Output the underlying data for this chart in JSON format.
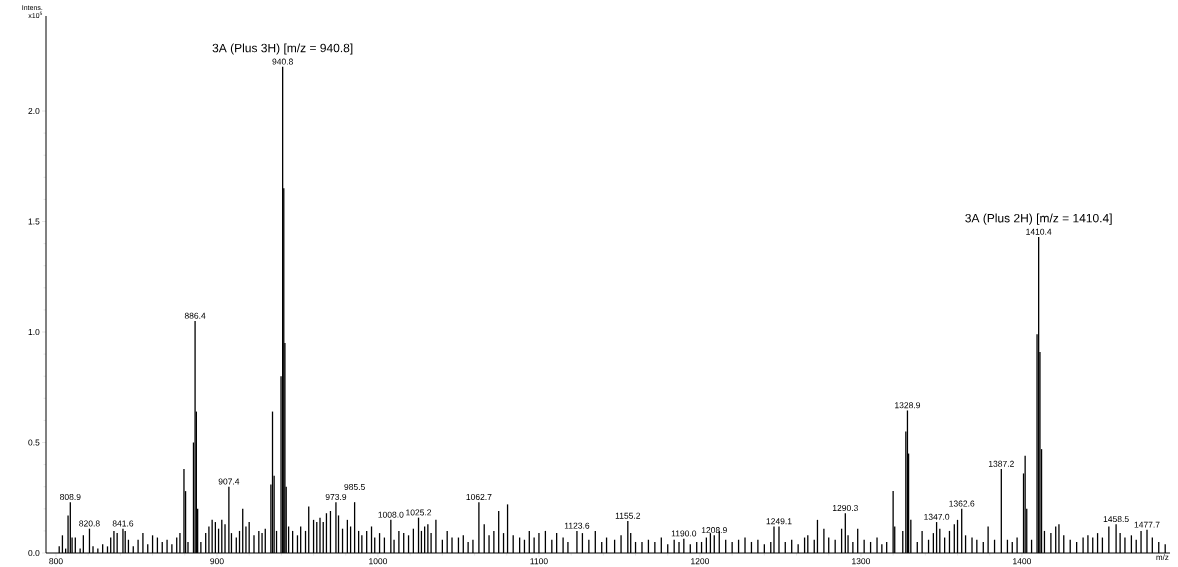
{
  "chart_data": {
    "type": "bar",
    "xlabel": "m/z",
    "ylabel": "Intens. x10$^{5}$",
    "xlim": [
      793.8,
      1492
    ],
    "ylim": [
      0,
      2.43
    ],
    "xticks": [
      800,
      900,
      1000,
      1100,
      1200,
      1300,
      1400
    ],
    "yticks": [
      {
        "value": 0,
        "label": "0.0"
      },
      {
        "value": 0.5,
        "label": "0.5"
      },
      {
        "value": 1,
        "label": "1.0"
      },
      {
        "value": 1.5,
        "label": "1.5"
      },
      {
        "value": 2,
        "label": "2.0"
      }
    ],
    "series": [
      {
        "color": "#000000",
        "x": [
          802,
          804,
          806,
          807.5,
          808.9,
          810,
          812,
          815,
          817,
          820.8,
          823,
          826,
          829,
          832,
          834,
          836,
          838,
          841.6,
          843,
          845,
          848,
          851,
          854,
          857,
          860,
          863,
          866,
          869,
          872,
          875,
          877,
          879.5,
          880.5,
          882,
          885.4,
          886.4,
          887.2,
          888,
          890,
          893,
          895,
          897,
          899,
          901,
          903,
          905,
          907.4,
          909,
          912,
          914,
          916,
          918,
          920,
          923,
          926,
          928,
          930,
          933.5,
          934.5,
          935.5,
          937,
          939.8,
          940.8,
          941.5,
          942.2,
          943,
          944.5,
          947,
          950,
          952,
          955,
          957,
          960,
          962,
          964,
          966,
          968,
          970.5,
          973.9,
          975.5,
          978,
          981,
          983,
          985.5,
          988,
          990,
          993,
          996,
          998,
          1001,
          1004,
          1008.0,
          1010,
          1013,
          1016,
          1019,
          1022,
          1025.2,
          1027,
          1029,
          1031,
          1033,
          1036,
          1040,
          1043,
          1046,
          1050,
          1053,
          1056,
          1059,
          1062.7,
          1066,
          1069,
          1072,
          1075,
          1078,
          1080.5,
          1084,
          1088,
          1091,
          1094,
          1097,
          1100,
          1104,
          1108,
          1111,
          1115,
          1118,
          1123.6,
          1127,
          1131,
          1135,
          1139,
          1142,
          1147,
          1151,
          1155.2,
          1157,
          1160,
          1164,
          1168,
          1172,
          1176,
          1180,
          1184,
          1187,
          1190.0,
          1194,
          1198,
          1201,
          1204,
          1206.5,
          1208.9,
          1212,
          1216,
          1220,
          1224,
          1228,
          1232,
          1236,
          1240,
          1244,
          1246,
          1249.1,
          1253,
          1257,
          1261,
          1265,
          1267,
          1271,
          1273,
          1277,
          1280,
          1284,
          1288,
          1290.3,
          1292,
          1295,
          1298,
          1302,
          1306,
          1310,
          1313,
          1316,
          1320,
          1321,
          1326,
          1327.9,
          1328.9,
          1329.6,
          1331,
          1335,
          1338,
          1342,
          1345,
          1347.0,
          1349,
          1352,
          1355,
          1358,
          1360,
          1362.6,
          1365,
          1369,
          1372,
          1376,
          1379,
          1383,
          1387.2,
          1391,
          1394,
          1397,
          1401,
          1402,
          1403,
          1406,
          1409.4,
          1410.4,
          1411.2,
          1412.2,
          1414,
          1418,
          1421,
          1423,
          1426,
          1430,
          1434,
          1438,
          1441,
          1444,
          1447,
          1450,
          1454,
          1458.5,
          1461,
          1464,
          1468,
          1471,
          1474,
          1477.7,
          1481,
          1485,
          1489
        ],
        "values": [
          0.03,
          0.08,
          0.02,
          0.17,
          0.23,
          0.07,
          0.07,
          0.02,
          0.08,
          0.11,
          0.03,
          0.02,
          0.04,
          0.03,
          0.07,
          0.1,
          0.09,
          0.11,
          0.1,
          0.06,
          0.03,
          0.06,
          0.09,
          0.04,
          0.08,
          0.07,
          0.05,
          0.06,
          0.04,
          0.07,
          0.09,
          0.38,
          0.28,
          0.05,
          0.5,
          1.05,
          0.64,
          0.2,
          0.05,
          0.09,
          0.12,
          0.15,
          0.14,
          0.11,
          0.15,
          0.13,
          0.3,
          0.09,
          0.07,
          0.1,
          0.2,
          0.12,
          0.14,
          0.08,
          0.1,
          0.09,
          0.11,
          0.31,
          0.64,
          0.35,
          0.1,
          0.8,
          2.2,
          1.65,
          0.95,
          0.3,
          0.12,
          0.1,
          0.08,
          0.12,
          0.1,
          0.21,
          0.15,
          0.14,
          0.16,
          0.14,
          0.18,
          0.19,
          0.23,
          0.17,
          0.11,
          0.15,
          0.12,
          0.23,
          0.1,
          0.08,
          0.1,
          0.12,
          0.07,
          0.09,
          0.07,
          0.15,
          0.06,
          0.1,
          0.09,
          0.08,
          0.11,
          0.16,
          0.1,
          0.12,
          0.13,
          0.09,
          0.15,
          0.06,
          0.1,
          0.07,
          0.07,
          0.08,
          0.05,
          0.06,
          0.23,
          0.13,
          0.08,
          0.1,
          0.19,
          0.09,
          0.22,
          0.08,
          0.07,
          0.06,
          0.1,
          0.07,
          0.09,
          0.1,
          0.06,
          0.09,
          0.07,
          0.05,
          0.1,
          0.09,
          0.06,
          0.1,
          0.05,
          0.07,
          0.06,
          0.08,
          0.145,
          0.09,
          0.05,
          0.05,
          0.06,
          0.05,
          0.07,
          0.04,
          0.06,
          0.05,
          0.065,
          0.04,
          0.05,
          0.05,
          0.07,
          0.09,
          0.08,
          0.1,
          0.06,
          0.05,
          0.06,
          0.07,
          0.05,
          0.06,
          0.04,
          0.05,
          0.12,
          0.12,
          0.05,
          0.06,
          0.04,
          0.07,
          0.08,
          0.06,
          0.15,
          0.11,
          0.07,
          0.06,
          0.11,
          0.18,
          0.08,
          0.05,
          0.11,
          0.06,
          0.05,
          0.07,
          0.04,
          0.05,
          0.28,
          0.12,
          0.1,
          0.55,
          0.645,
          0.45,
          0.15,
          0.05,
          0.1,
          0.06,
          0.09,
          0.14,
          0.11,
          0.07,
          0.1,
          0.13,
          0.15,
          0.2,
          0.08,
          0.07,
          0.06,
          0.05,
          0.12,
          0.06,
          0.38,
          0.06,
          0.05,
          0.07,
          0.36,
          0.44,
          0.2,
          0.06,
          0.99,
          1.43,
          0.91,
          0.47,
          0.1,
          0.09,
          0.12,
          0.13,
          0.08,
          0.06,
          0.05,
          0.07,
          0.08,
          0.07,
          0.09,
          0.07,
          0.12,
          0.13,
          0.09,
          0.07,
          0.08,
          0.06,
          0.1,
          0.105,
          0.07,
          0.05,
          0.04
        ]
      }
    ],
    "annotations": [
      {
        "text": "808.9",
        "x": 808.9,
        "y": 0.23
      },
      {
        "text": "820.8",
        "x": 820.8,
        "y": 0.11
      },
      {
        "text": "841.6",
        "x": 841.6,
        "y": 0.11
      },
      {
        "text": "886.4",
        "x": 886.4,
        "y": 1.05
      },
      {
        "text": "907.4",
        "x": 907.4,
        "y": 0.3
      },
      {
        "text": "940.8",
        "x": 940.8,
        "y": 2.2
      },
      {
        "text": "3A (Plus 3H) [m/z = 940.8]",
        "x": 940.8,
        "y": 2.2
      },
      {
        "text": "973.9",
        "x": 973.9,
        "y": 0.23
      },
      {
        "text": "985.5",
        "x": 985.5,
        "y": 0.23
      },
      {
        "text": "1008.0",
        "x": 1008.0,
        "y": 0.15
      },
      {
        "text": "1025.2",
        "x": 1025.2,
        "y": 0.16
      },
      {
        "text": "1062.7",
        "x": 1062.7,
        "y": 0.23
      },
      {
        "text": "1123.6",
        "x": 1123.6,
        "y": 0.1
      },
      {
        "text": "1155.2",
        "x": 1155.2,
        "y": 0.145
      },
      {
        "text": "1190.0",
        "x": 1190.0,
        "y": 0.065
      },
      {
        "text": "1208.9",
        "x": 1208.9,
        "y": 0.08
      },
      {
        "text": "1249.1",
        "x": 1249.1,
        "y": 0.12
      },
      {
        "text": "1290.3",
        "x": 1290.3,
        "y": 0.18
      },
      {
        "text": "1328.9",
        "x": 1328.9,
        "y": 0.645
      },
      {
        "text": "1347.0",
        "x": 1347.0,
        "y": 0.14
      },
      {
        "text": "1362.6",
        "x": 1362.6,
        "y": 0.2
      },
      {
        "text": "1387.2",
        "x": 1387.2,
        "y": 0.38
      },
      {
        "text": "1410.4",
        "x": 1410.4,
        "y": 1.43
      },
      {
        "text": "3A (Plus 2H) [m/z = 1410.4]",
        "x": 1410.4,
        "y": 1.43
      },
      {
        "text": "1458.5",
        "x": 1458.5,
        "y": 0.13
      },
      {
        "text": "1477.7",
        "x": 1477.7,
        "y": 0.105
      }
    ]
  }
}
